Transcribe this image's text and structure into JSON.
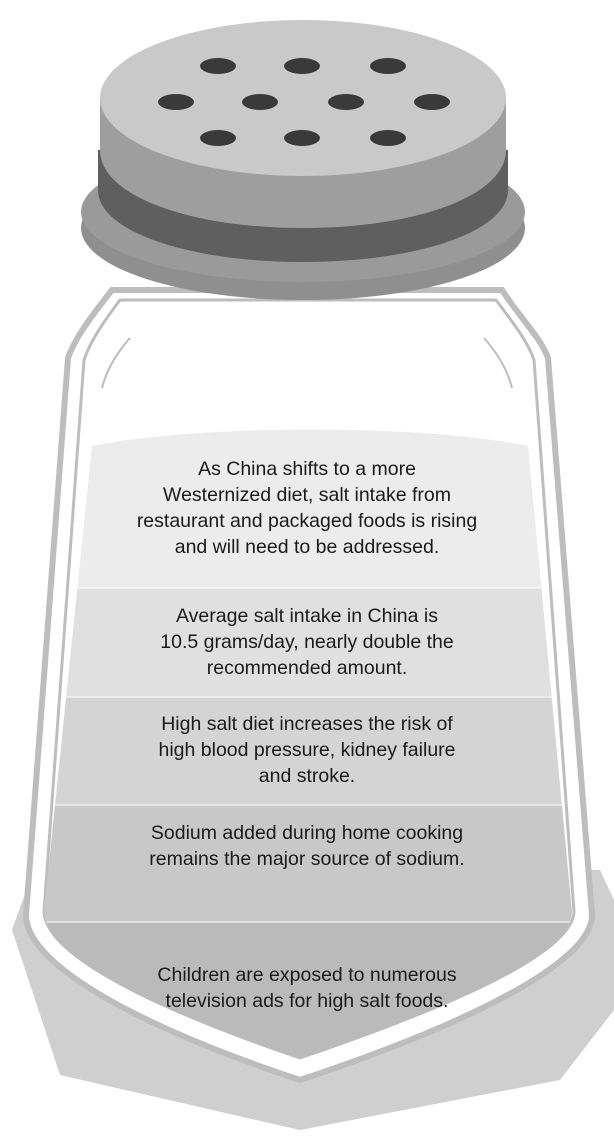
{
  "shaker": {
    "cap_hole_count": 10,
    "colors": {
      "cap_top": "#c9c9c9",
      "cap_side": "#9e9e9e",
      "cap_rim": "#5f5f5f",
      "collar": "#8f8f8f",
      "holes": "#3a3a3a",
      "glass_outline": "#bdbdbd",
      "shadow": "#cfcfcf"
    }
  },
  "facts": [
    {
      "text": "As China shifts to a more\nWesternized diet, salt intake from\nrestaurant and packaged foods is rising\nand will need to be addressed.",
      "fill": "#ececec"
    },
    {
      "text": "Average salt intake in China is\n10.5 grams/day, nearly double the\nrecommended amount.",
      "fill": "#e0e0e0"
    },
    {
      "text": "High salt diet increases the risk of\nhigh blood pressure, kidney failure\nand stroke.",
      "fill": "#d4d4d4"
    },
    {
      "text": "Sodium added during home cooking\nremains the major source of sodium.",
      "fill": "#c8c8c8"
    },
    {
      "text": "Children are exposed to numerous\ntelevision ads for high salt foods.",
      "fill": "#bababa"
    }
  ]
}
